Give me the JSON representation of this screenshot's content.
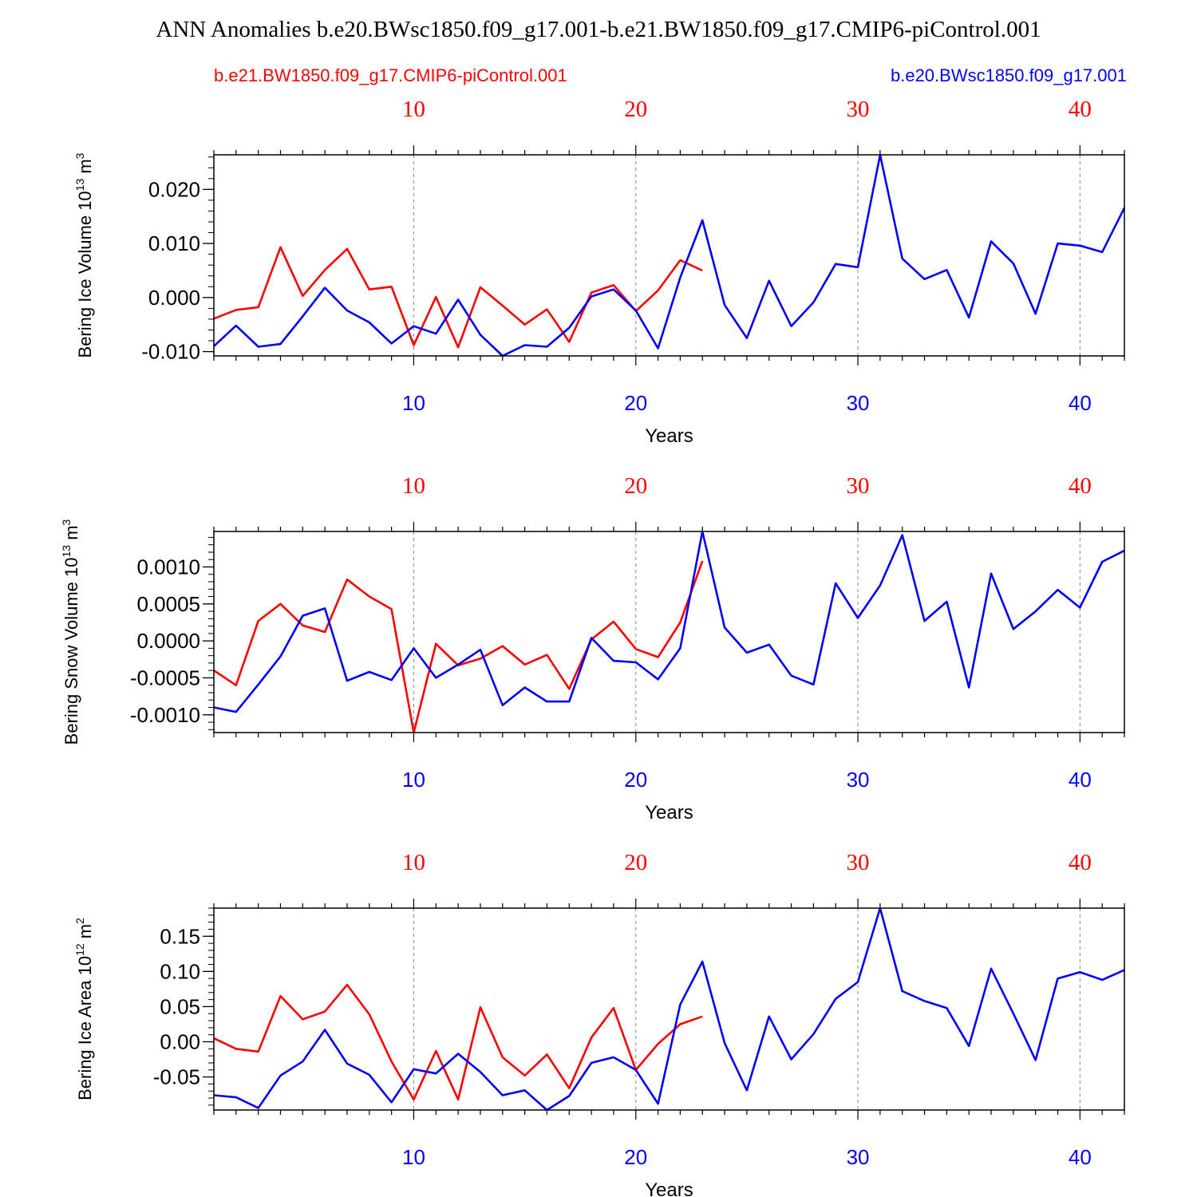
{
  "title": "ANN Anomalies b.e20.BWsc1850.f09_g17.001-b.e21.BW1850.f09_g17.CMIP6-piControl.001",
  "legend": {
    "left_label": "b.e21.BW1850.f09_g17.CMIP6-piControl.001",
    "right_label": "b.e20.BWsc1850.f09_g17.001"
  },
  "colors": {
    "red": "#ff0000",
    "blue": "#0000ff"
  },
  "chart_data": [
    {
      "type": "line",
      "ylabel_main": "Bering Ice Volume 10",
      "ylabel_exp": "13",
      "ylabel_unit": " m",
      "ylabel_unit_exp": "3",
      "xlabel": "Years",
      "xlim": [
        1,
        42
      ],
      "ylim": [
        -0.0108,
        0.0264
      ],
      "xticks": [
        10,
        20,
        30,
        40
      ],
      "xtick_labels": [
        "10",
        "20",
        "30",
        "40"
      ],
      "yticks": [
        -0.01,
        0.0,
        0.01,
        0.02
      ],
      "ytick_labels": [
        "-0.010",
        "0.000",
        "0.010",
        "0.020"
      ],
      "yminor_step": 0.002,
      "series": [
        {
          "name": "b.e21.BW1850.f09_g17.CMIP6-piControl.001",
          "color": "#ff0000",
          "x": [
            1,
            2,
            3,
            4,
            5,
            6,
            7,
            8,
            9,
            10,
            11,
            12,
            13,
            14,
            15,
            16,
            17,
            18,
            19,
            20,
            21,
            22,
            23
          ],
          "values": [
            -0.0039,
            -0.0023,
            -0.0018,
            0.0093,
            0.0003,
            0.0051,
            0.009,
            0.0015,
            0.002,
            -0.0088,
            0.0001,
            -0.0092,
            0.0019,
            -0.0015,
            -0.005,
            -0.0022,
            -0.0082,
            0.0009,
            0.0023,
            -0.0025,
            0.0013,
            0.0069,
            0.005
          ]
        },
        {
          "name": "b.e20.BWsc1850.f09_g17.001",
          "color": "#0000ff",
          "x": [
            1,
            2,
            3,
            4,
            5,
            6,
            7,
            8,
            9,
            10,
            11,
            12,
            13,
            14,
            15,
            16,
            17,
            18,
            19,
            20,
            21,
            22,
            23,
            24,
            25,
            26,
            27,
            28,
            29,
            30,
            31,
            32,
            33,
            34,
            35,
            36,
            37,
            38,
            39,
            40,
            41,
            42
          ],
          "values": [
            -0.009,
            -0.0052,
            -0.0091,
            -0.0086,
            -0.0035,
            0.0018,
            -0.0024,
            -0.0046,
            -0.0085,
            -0.0053,
            -0.0067,
            -0.0004,
            -0.0069,
            -0.0108,
            -0.0088,
            -0.0091,
            -0.0056,
            0.0002,
            0.0015,
            -0.0024,
            -0.0094,
            0.0037,
            0.0143,
            -0.0014,
            -0.0075,
            0.0031,
            -0.0053,
            -0.0009,
            0.0062,
            0.0056,
            0.0264,
            0.0072,
            0.0034,
            0.0051,
            -0.0037,
            0.0104,
            0.0063,
            -0.003,
            0.01,
            0.0096,
            0.0084,
            0.0166
          ]
        }
      ]
    },
    {
      "type": "line",
      "ylabel_main": "Bering Snow Volume 10",
      "ylabel_exp": "13",
      "ylabel_unit": " m",
      "ylabel_unit_exp": "3",
      "xlabel": "Years",
      "xlim": [
        1,
        42
      ],
      "ylim": [
        -0.00124,
        0.00148
      ],
      "xticks": [
        10,
        20,
        30,
        40
      ],
      "xtick_labels": [
        "10",
        "20",
        "30",
        "40"
      ],
      "yticks": [
        -0.001,
        -0.0005,
        0.0,
        0.0005,
        0.001
      ],
      "ytick_labels": [
        "-0.0010",
        "-0.0005",
        "0.0000",
        "0.0005",
        "0.0010"
      ],
      "yminor_step": 0.0001,
      "series": [
        {
          "name": "b.e21.BW1850.f09_g17.CMIP6-piControl.001",
          "color": "#ff0000",
          "x": [
            1,
            2,
            3,
            4,
            5,
            6,
            7,
            8,
            9,
            10,
            11,
            12,
            13,
            14,
            15,
            16,
            17,
            18,
            19,
            20,
            21,
            22,
            23
          ],
          "values": [
            -0.0004,
            -0.0006,
            0.00027,
            0.0005,
            0.00021,
            0.00012,
            0.00083,
            0.0006,
            0.00043,
            -0.00124,
            -4e-05,
            -0.00033,
            -0.00024,
            -7e-05,
            -0.00032,
            -0.00019,
            -0.00065,
            2e-05,
            0.00026,
            -0.00011,
            -0.00022,
            0.00025,
            0.00108
          ]
        },
        {
          "name": "b.e20.BWsc1850.f09_g17.001",
          "color": "#0000ff",
          "x": [
            1,
            2,
            3,
            4,
            5,
            6,
            7,
            8,
            9,
            10,
            11,
            12,
            13,
            14,
            15,
            16,
            17,
            18,
            19,
            20,
            21,
            22,
            23,
            24,
            25,
            26,
            27,
            28,
            29,
            30,
            31,
            32,
            33,
            34,
            35,
            36,
            37,
            38,
            39,
            40,
            41,
            42
          ],
          "values": [
            -0.0009,
            -0.00096,
            -0.00059,
            -0.00021,
            0.00034,
            0.00044,
            -0.00054,
            -0.00042,
            -0.00053,
            -0.0001,
            -0.0005,
            -0.00032,
            -0.00012,
            -0.00087,
            -0.00063,
            -0.00082,
            -0.00082,
            4e-05,
            -0.00027,
            -0.00029,
            -0.00052,
            -0.0001,
            0.00148,
            0.00018,
            -0.00016,
            -5e-05,
            -0.00047,
            -0.00059,
            0.00078,
            0.00031,
            0.00075,
            0.00143,
            0.00027,
            0.00053,
            -0.00063,
            0.00091,
            0.00016,
            0.0004,
            0.00069,
            0.00045,
            0.00107,
            0.00122
          ]
        }
      ]
    },
    {
      "type": "line",
      "ylabel_main": "Bering Ice Area 10",
      "ylabel_exp": "12",
      "ylabel_unit": " m",
      "ylabel_unit_exp": "2",
      "xlabel": "Years",
      "xlim": [
        1,
        42
      ],
      "ylim": [
        -0.097,
        0.19
      ],
      "xticks": [
        10,
        20,
        30,
        40
      ],
      "xtick_labels": [
        "10",
        "20",
        "30",
        "40"
      ],
      "yticks": [
        -0.05,
        0.0,
        0.05,
        0.1,
        0.15
      ],
      "ytick_labels": [
        "-0.05",
        "0.00",
        "0.05",
        "0.10",
        "0.15"
      ],
      "yminor_step": 0.01,
      "series": [
        {
          "name": "b.e21.BW1850.f09_g17.CMIP6-piControl.001",
          "color": "#ff0000",
          "x": [
            1,
            2,
            3,
            4,
            5,
            6,
            7,
            8,
            9,
            10,
            11,
            12,
            13,
            14,
            15,
            16,
            17,
            18,
            19,
            20,
            21,
            22,
            23
          ],
          "values": [
            0.005,
            -0.01,
            -0.014,
            0.065,
            0.032,
            0.043,
            0.081,
            0.039,
            -0.028,
            -0.082,
            -0.013,
            -0.082,
            0.049,
            -0.022,
            -0.048,
            -0.018,
            -0.066,
            0.006,
            0.048,
            -0.04,
            -0.003,
            0.025,
            0.036
          ]
        },
        {
          "name": "b.e20.BWsc1850.f09_g17.001",
          "color": "#0000ff",
          "x": [
            1,
            2,
            3,
            4,
            5,
            6,
            7,
            8,
            9,
            10,
            11,
            12,
            13,
            14,
            15,
            16,
            17,
            18,
            19,
            20,
            21,
            22,
            23,
            24,
            25,
            26,
            27,
            28,
            29,
            30,
            31,
            32,
            33,
            34,
            35,
            36,
            37,
            38,
            39,
            40,
            41,
            42
          ],
          "values": [
            -0.076,
            -0.079,
            -0.094,
            -0.048,
            -0.028,
            0.017,
            -0.031,
            -0.047,
            -0.086,
            -0.039,
            -0.045,
            -0.017,
            -0.043,
            -0.076,
            -0.069,
            -0.097,
            -0.077,
            -0.03,
            -0.022,
            -0.04,
            -0.088,
            0.053,
            0.114,
            -0.002,
            -0.069,
            0.036,
            -0.025,
            0.011,
            0.061,
            0.085,
            0.19,
            0.072,
            0.058,
            0.048,
            -0.006,
            0.104,
            0.04,
            -0.026,
            0.09,
            0.099,
            0.088,
            0.102
          ]
        }
      ]
    }
  ]
}
